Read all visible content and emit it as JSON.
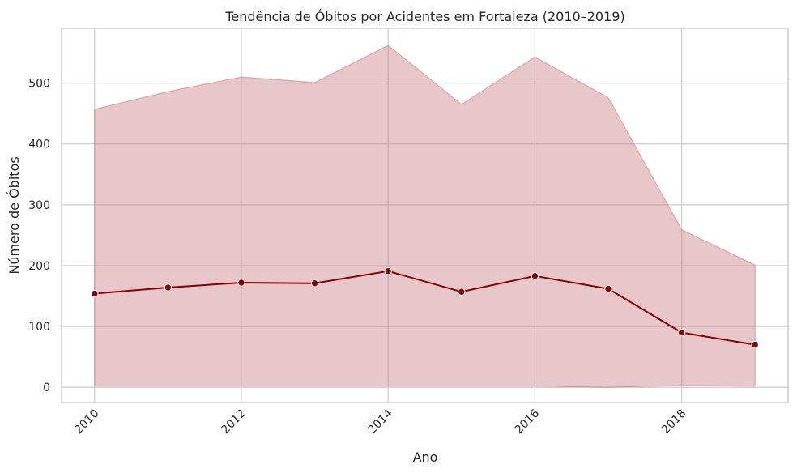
{
  "chart_data": {
    "type": "line",
    "title": "Tendência de Óbitos por Acidentes em Fortaleza (2010–2019)",
    "xlabel": "Ano",
    "ylabel": "Número de Óbitos",
    "xlim": [
      2009.55,
      2019.45
    ],
    "ylim": [
      -25,
      590
    ],
    "x_ticks": [
      2010,
      2012,
      2014,
      2016,
      2018
    ],
    "y_ticks": [
      0,
      100,
      200,
      300,
      400,
      500
    ],
    "grid": true,
    "series": [
      {
        "x": [
          2010,
          2011,
          2012,
          2013,
          2014,
          2015,
          2016,
          2017,
          2018,
          2019
        ],
        "values": [
          154,
          164,
          172,
          171,
          191,
          157,
          183,
          162,
          90,
          70
        ],
        "band_upper": [
          457,
          486,
          510,
          501,
          562,
          465,
          543,
          476,
          259,
          201
        ],
        "band_lower": [
          2,
          2,
          2,
          2,
          2,
          2,
          2,
          0,
          3,
          2
        ],
        "line_color": "#8b0000",
        "marker_color": "#8b0000",
        "band_color": "#c57a7e"
      }
    ]
  }
}
